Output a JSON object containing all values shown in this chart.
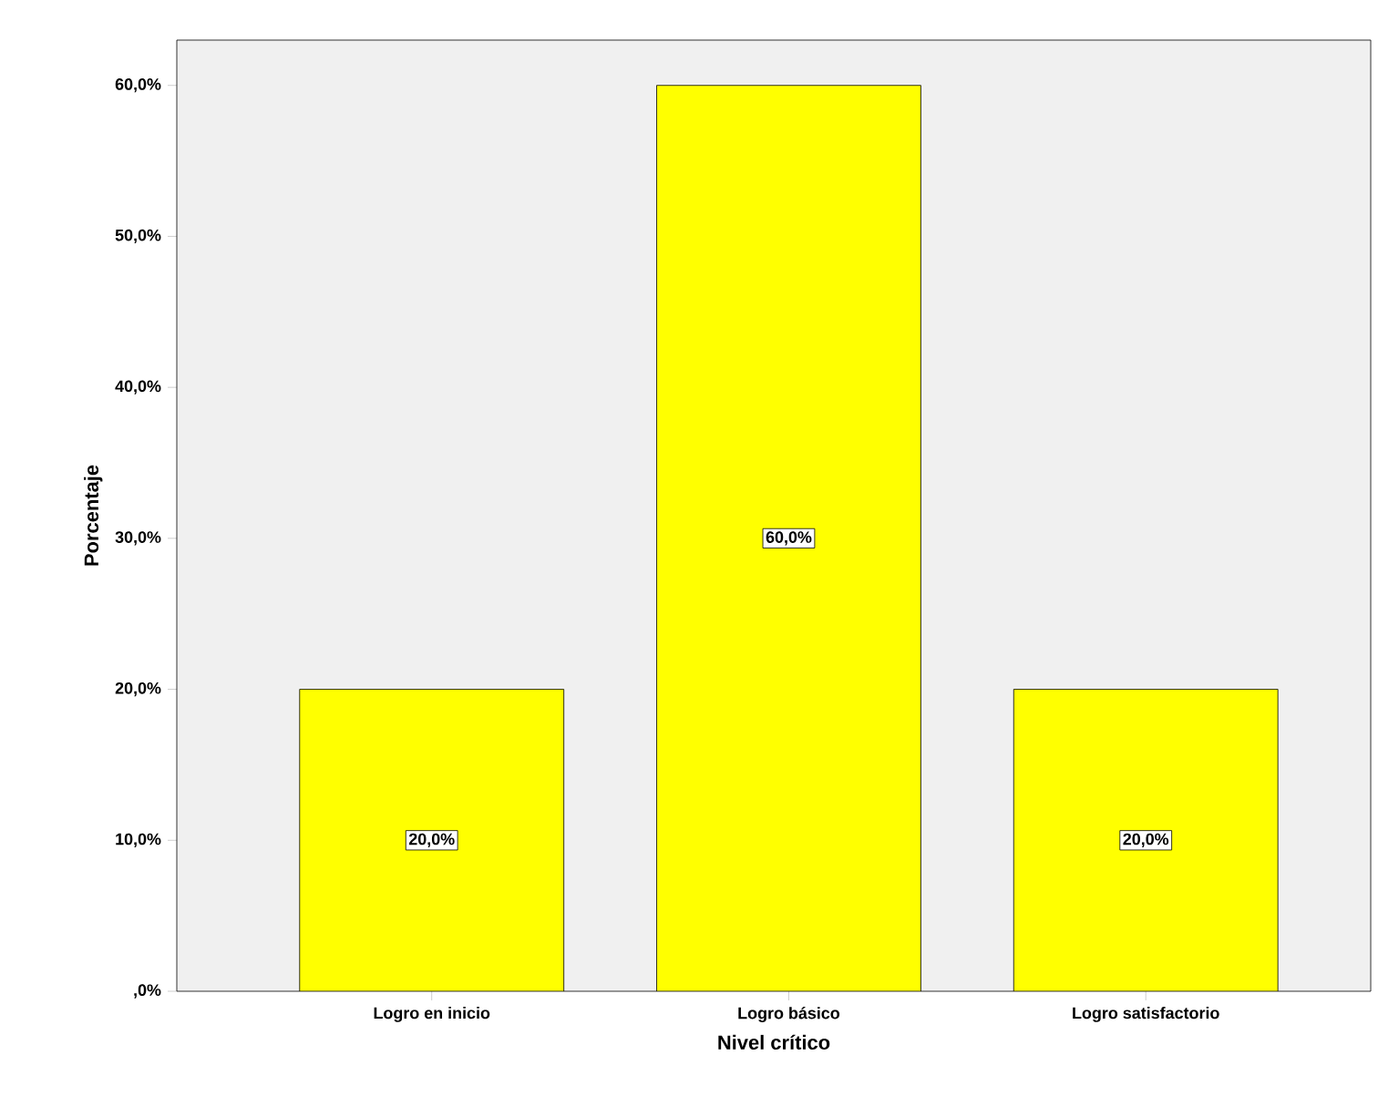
{
  "chart_data": {
    "type": "bar",
    "xlabel": "Nivel crítico",
    "ylabel": "Porcentaje",
    "categories": [
      "Logro en inicio",
      "Logro básico",
      "Logro satisfactorio"
    ],
    "values": [
      20,
      60,
      20
    ],
    "color": "#ffff00",
    "value_labels": [
      "20,0%",
      "60,0%",
      "20,0%"
    ],
    "ylim": [
      0,
      63
    ],
    "yticks": [
      {
        "value": 0,
        "label": ",0%"
      },
      {
        "value": 10,
        "label": "10,0%"
      },
      {
        "value": 20,
        "label": "20,0%"
      },
      {
        "value": 30,
        "label": "30,0%"
      },
      {
        "value": 40,
        "label": "40,0%"
      },
      {
        "value": 50,
        "label": "50,0%"
      },
      {
        "value": 60,
        "label": "60,0%"
      }
    ],
    "grid": false
  }
}
